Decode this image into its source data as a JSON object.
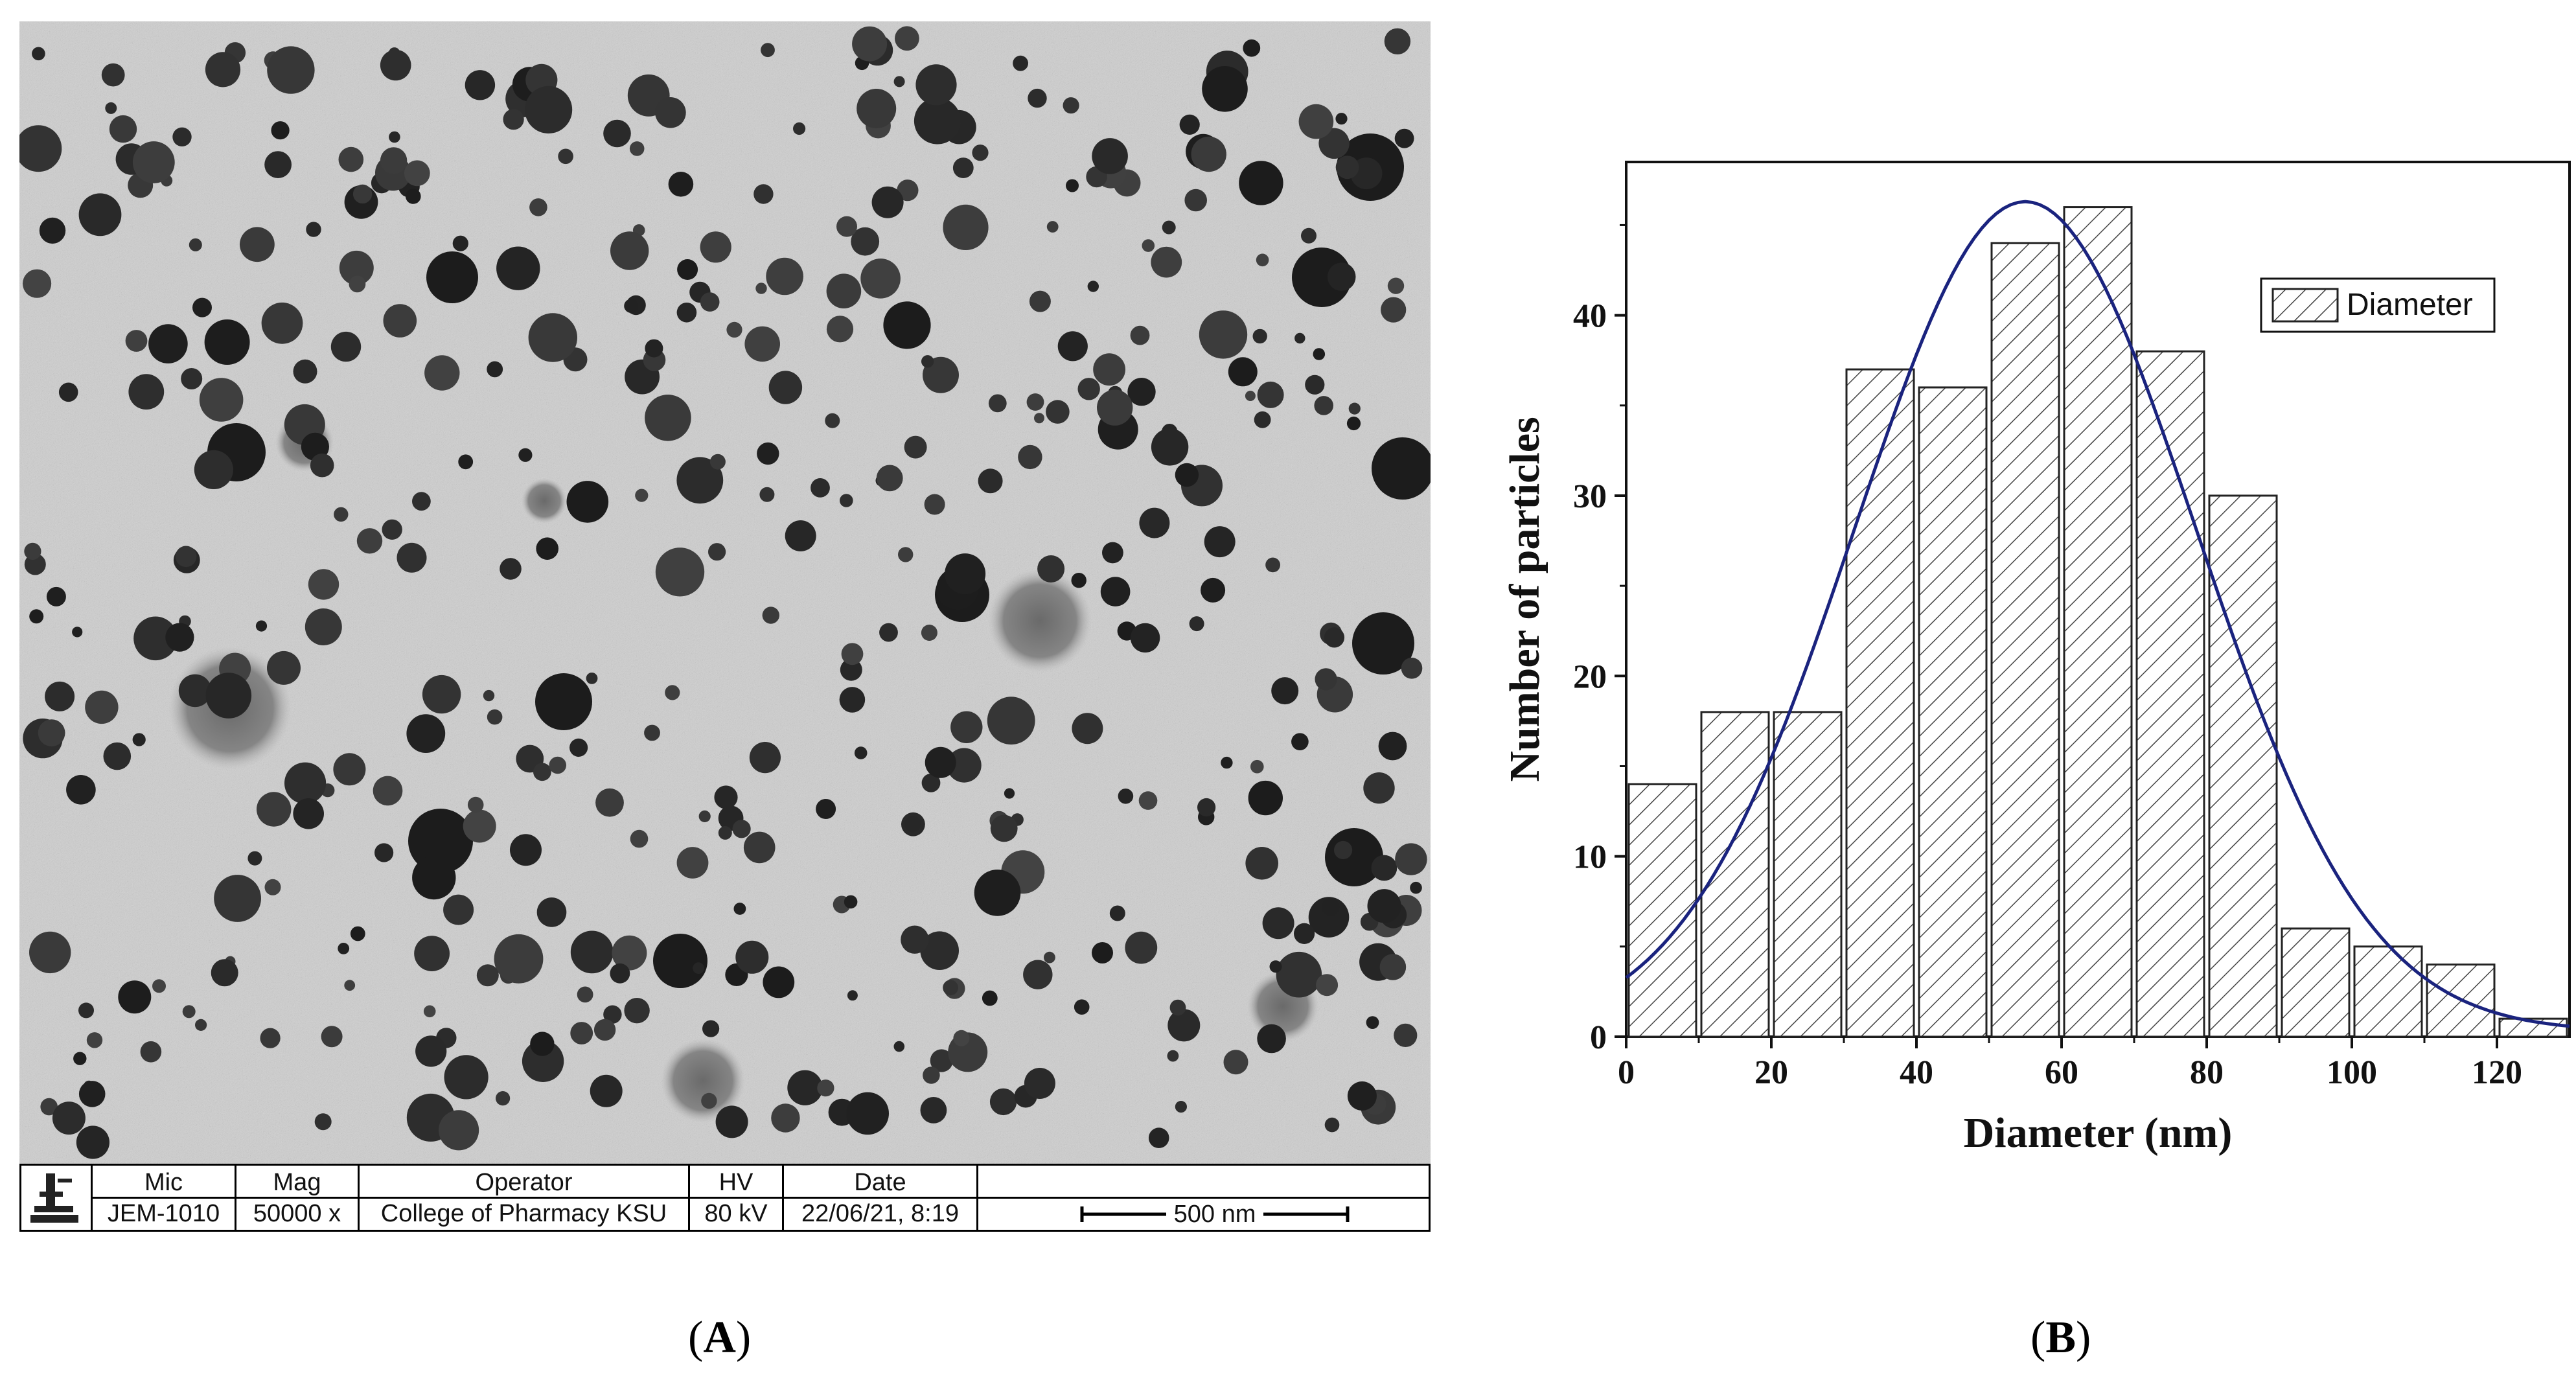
{
  "panel_a": {
    "infobar": {
      "mic_label": "Mic",
      "mic_value": "JEM-1010",
      "mag_label": "Mag",
      "mag_value": "50000 x",
      "operator_label": "Operator",
      "operator_value": "College of Pharmacy  KSU",
      "hv_label": "HV",
      "hv_value": "80 kV",
      "date_label": "Date",
      "date_value": "22/06/21, 8:19",
      "scale_label": "500 nm",
      "logo_icon": "microscope-logo-icon"
    },
    "caption_letter": "A"
  },
  "panel_b": {
    "caption_letter": "B"
  },
  "chart_data": {
    "type": "bar",
    "subtype": "histogram-with-gaussian-fit",
    "xlabel": "Diameter (nm)",
    "ylabel": "Number of particles",
    "xlim": [
      0,
      130
    ],
    "ylim": [
      0,
      46
    ],
    "xticks": [
      0,
      20,
      40,
      60,
      80,
      100,
      120
    ],
    "yticks": [
      0,
      10,
      20,
      30,
      40
    ],
    "legend": "top-right",
    "grid": false,
    "series": [
      {
        "name": "Diameter",
        "bin_width": 10,
        "bin_centers": [
          5,
          15,
          25,
          35,
          45,
          55,
          65,
          75,
          85,
          95,
          105,
          115,
          125
        ],
        "values": [
          14,
          18,
          18,
          37,
          36,
          44,
          46,
          38,
          30,
          6,
          5,
          4,
          1
        ],
        "fill": "hatched",
        "color": "#333333"
      }
    ],
    "fit_curve": {
      "type": "gaussian",
      "color": "#1a237e",
      "peak_x": 55,
      "peak_y": 46,
      "points": [
        [
          0,
          4.2
        ],
        [
          10,
          9
        ],
        [
          20,
          18
        ],
        [
          30,
          29.5
        ],
        [
          40,
          39.5
        ],
        [
          50,
          45
        ],
        [
          55,
          46
        ],
        [
          60,
          45.5
        ],
        [
          70,
          40.5
        ],
        [
          80,
          31
        ],
        [
          90,
          19.5
        ],
        [
          100,
          9.5
        ],
        [
          110,
          4.5
        ],
        [
          120,
          1.8
        ],
        [
          130,
          0.6
        ]
      ]
    }
  }
}
